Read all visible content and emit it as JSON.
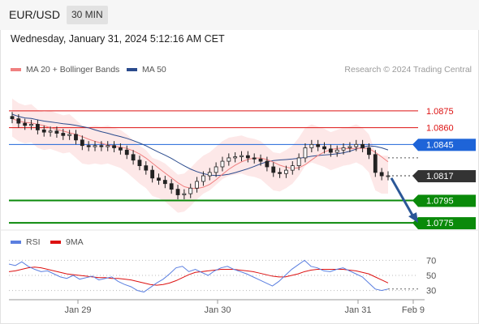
{
  "header": {
    "pair": "EUR/USD",
    "timeframe": "30 MIN"
  },
  "datetime": "Wednesday, January 31, 2024 5:12:16 AM CET",
  "legend": [
    {
      "label": "MA 20 + Bollinger Bands",
      "color": "#f08080"
    },
    {
      "label": "MA 50",
      "color": "#2a4b8d"
    }
  ],
  "credit": "Research © 2024 Trading Central",
  "rsi_legend": [
    {
      "label": "RSI",
      "color": "#5b7fe0"
    },
    {
      "label": "9MA",
      "color": "#dd1111"
    }
  ],
  "chart_data": [
    {
      "type": "line",
      "title": "",
      "x_labels": [
        "Jan 29",
        "Jan 30",
        "Jan 31",
        "Feb 9"
      ],
      "ylim": [
        1.077,
        1.0893
      ],
      "levels": [
        {
          "value": 1.0875,
          "label": "1.0875",
          "color": "#dd1111",
          "style": "resistance"
        },
        {
          "value": 1.086,
          "label": "1.0860",
          "color": "#dd1111",
          "style": "resistance"
        },
        {
          "value": 1.0845,
          "label": "1.0845",
          "color": "#1e64d8",
          "style": "pivot"
        },
        {
          "value": 1.0817,
          "label": "1.0817",
          "color": "#333333",
          "style": "last-price"
        },
        {
          "value": 1.0795,
          "label": "1.0795",
          "color": "#0a8a0a",
          "style": "support"
        },
        {
          "value": 1.0775,
          "label": "1.0775",
          "color": "#0a8a0a",
          "style": "support"
        }
      ],
      "price_series": [
        1.0868,
        1.0864,
        1.0862,
        1.0863,
        1.0858,
        1.0856,
        1.0857,
        1.0855,
        1.0853,
        1.0854,
        1.0849,
        1.0844,
        1.0843,
        1.0844,
        1.0843,
        1.0844,
        1.0842,
        1.084,
        1.0836,
        1.0831,
        1.0826,
        1.0822,
        1.0815,
        1.0813,
        1.081,
        1.0805,
        1.08,
        1.0801,
        1.0806,
        1.0812,
        1.0817,
        1.082,
        1.0825,
        1.083,
        1.0833,
        1.0834,
        1.0835,
        1.0833,
        1.0832,
        1.083,
        1.0825,
        1.082,
        1.0819,
        1.0822,
        1.0826,
        1.0833,
        1.0842,
        1.0845,
        1.0843,
        1.0841,
        1.0838,
        1.084,
        1.0842,
        1.0843,
        1.0845,
        1.0842,
        1.0836,
        1.082,
        1.0817,
        1.0817
      ],
      "forecast_arrow": {
        "from": 1.0815,
        "to": 1.0775
      },
      "rsi": {
        "ticks": [
          70,
          50,
          30
        ],
        "ylim": [
          20,
          80
        ],
        "rsi_values": [
          65,
          63,
          68,
          62,
          58,
          55,
          56,
          52,
          48,
          46,
          50,
          45,
          47,
          49,
          44,
          46,
          48,
          42,
          38,
          35,
          30,
          28,
          34,
          40,
          45,
          52,
          60,
          62,
          55,
          58,
          54,
          50,
          56,
          60,
          62,
          58,
          55,
          52,
          48,
          44,
          40,
          36,
          42,
          50,
          58,
          64,
          70,
          62,
          60,
          56,
          55,
          58,
          60,
          56,
          52,
          48,
          40,
          32,
          30,
          32
        ],
        "ma_values": [
          55,
          56,
          58,
          60,
          61,
          60,
          58,
          56,
          54,
          52,
          51,
          50,
          49,
          48,
          47,
          47,
          46,
          46,
          45,
          44,
          42,
          40,
          38,
          37,
          38,
          40,
          43,
          47,
          51,
          54,
          55,
          56,
          57,
          58,
          58,
          58,
          57,
          56,
          55,
          53,
          51,
          49,
          48,
          48,
          50,
          52,
          55,
          57,
          58,
          58,
          58,
          58,
          58,
          57,
          56,
          54,
          52,
          48,
          44,
          40
        ]
      }
    }
  ]
}
